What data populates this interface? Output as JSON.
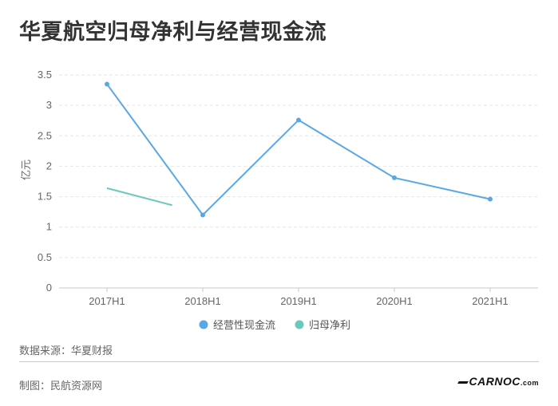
{
  "title": "华夏航空归母净利与经营现金流",
  "source_label": "数据来源：华夏财报",
  "credit_label": "制图：民航资源网",
  "logo": {
    "main": "CARNOC",
    "suffix": ".com"
  },
  "colors": {
    "series1": "#5aa8e3",
    "series2": "#6cc7bd",
    "grid": "#e6e6e6",
    "axis": "#c8c8c8"
  },
  "chart_data": {
    "type": "line",
    "ylabel": "亿元",
    "categories": [
      "2017H1",
      "2018H1",
      "2019H1",
      "2020H1",
      "2021H1"
    ],
    "ylim": [
      0,
      3.5
    ],
    "yticks": [
      "0",
      "0.5",
      "1",
      "1.5",
      "2",
      "2.5",
      "3",
      "3.5"
    ],
    "grid": true,
    "legend_position": "bottom",
    "series": [
      {
        "name": "经营性现金流",
        "values": [
          3.35,
          1.2,
          2.76,
          1.81,
          1.46
        ]
      },
      {
        "name": "归母净利",
        "values": [
          1.64,
          1.36,
          null,
          null,
          null
        ]
      }
    ]
  }
}
